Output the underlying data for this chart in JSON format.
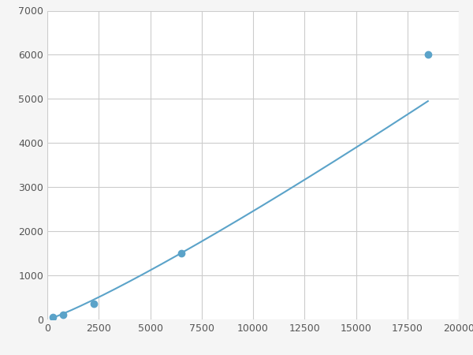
{
  "x": [
    250,
    750,
    2250,
    6500,
    18500
  ],
  "y": [
    50,
    100,
    350,
    1500,
    6000
  ],
  "line_color": "#5ba3c9",
  "marker_color": "#5ba3c9",
  "marker_size": 6,
  "line_width": 1.5,
  "xlim": [
    0,
    20000
  ],
  "ylim": [
    0,
    7000
  ],
  "xticks": [
    0,
    2500,
    5000,
    7500,
    10000,
    12500,
    15000,
    17500,
    20000
  ],
  "yticks": [
    0,
    1000,
    2000,
    3000,
    4000,
    5000,
    6000,
    7000
  ],
  "grid": true,
  "background_color": "#ffffff",
  "figure_facecolor": "#f5f5f5"
}
